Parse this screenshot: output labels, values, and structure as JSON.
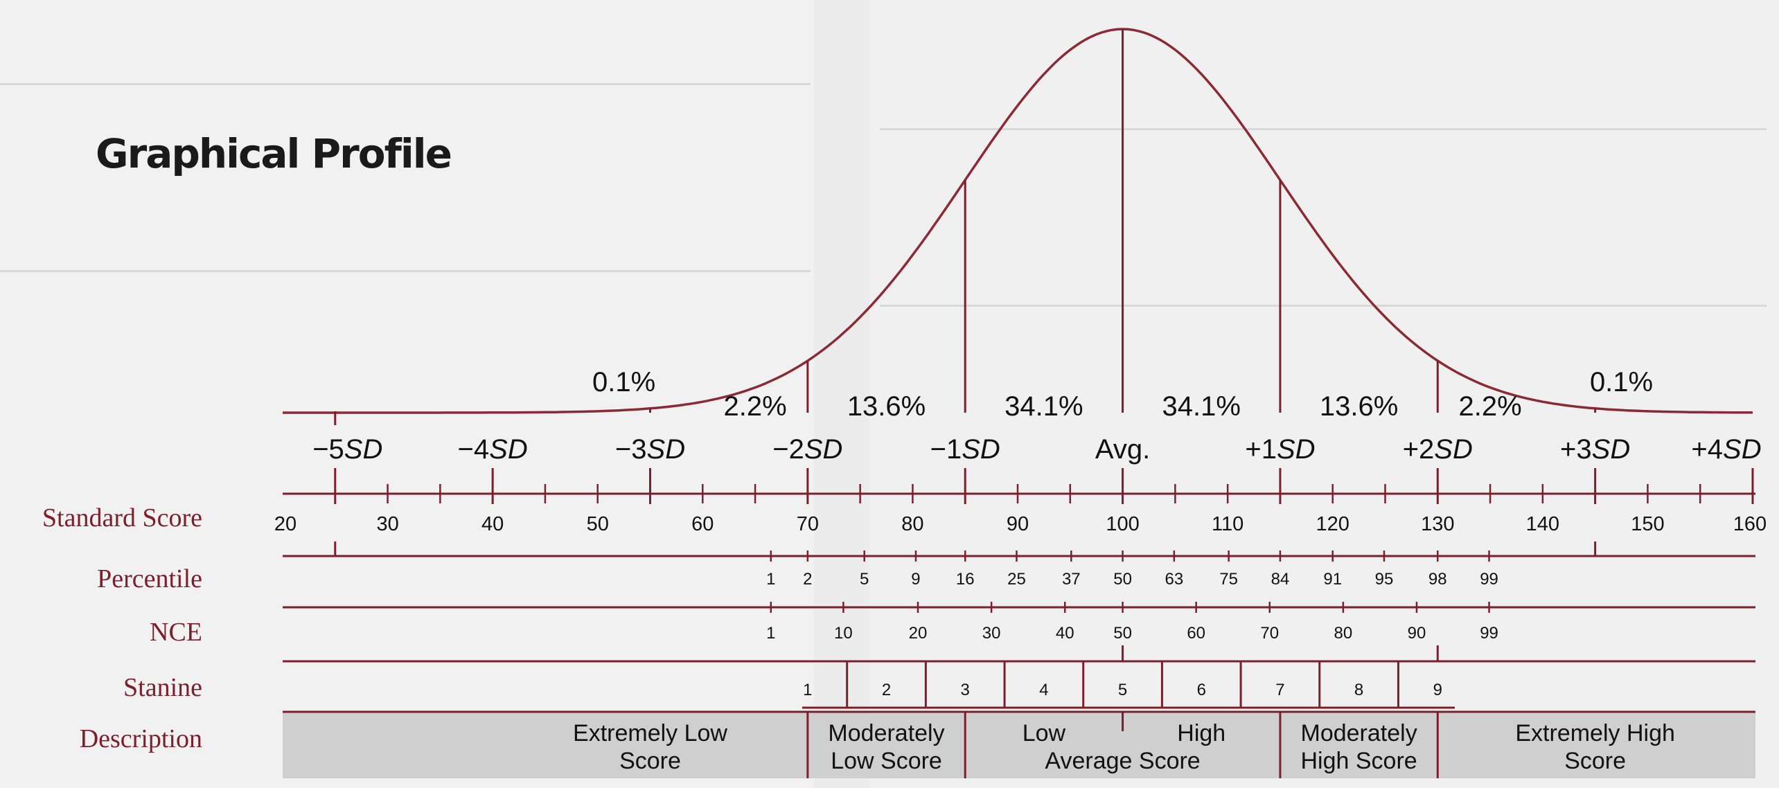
{
  "title": "Graphical Profile",
  "row_labels": {
    "standard_score": "Standard Score",
    "percentile": "Percentile",
    "nce": "NCE",
    "stanine": "Stanine",
    "description": "Description"
  },
  "colors": {
    "accent": "#7a1f2b",
    "curve": "#8b2a35",
    "description_band": "#cfcfcf"
  },
  "diagram": {
    "type": "normal-distribution-profile",
    "area_percentages": [
      {
        "label": "0.1%",
        "x": 52.5
      },
      {
        "label": "2.2%",
        "x": 65
      },
      {
        "label": "13.6%",
        "x": 77.5
      },
      {
        "label": "34.1%",
        "x": 92.5
      },
      {
        "label": "34.1%",
        "x": 107.5
      },
      {
        "label": "13.6%",
        "x": 122.5
      },
      {
        "label": "2.2%",
        "x": 135
      },
      {
        "label": "0.1%",
        "x": 147.5
      }
    ],
    "sd_markers": [
      {
        "value": 25,
        "sign": "−5",
        "unit": "SD"
      },
      {
        "value": 40,
        "sign": "−4",
        "unit": "SD"
      },
      {
        "value": 55,
        "sign": "−3",
        "unit": "SD"
      },
      {
        "value": 70,
        "sign": "−2",
        "unit": "SD"
      },
      {
        "value": 85,
        "sign": "−1",
        "unit": "SD"
      },
      {
        "value": 100,
        "sign": "Avg.",
        "unit": ""
      },
      {
        "value": 115,
        "sign": "+1",
        "unit": "SD"
      },
      {
        "value": 130,
        "sign": "+2",
        "unit": "SD"
      },
      {
        "value": 145,
        "sign": "+3",
        "unit": "SD"
      },
      {
        "value": 160,
        "sign": "+4",
        "unit": "SD"
      }
    ],
    "standard_scores": [
      20,
      30,
      40,
      50,
      60,
      70,
      80,
      90,
      100,
      110,
      120,
      130,
      140,
      150,
      160
    ],
    "percentiles": [
      {
        "label": "1",
        "x": 66.5
      },
      {
        "label": "2",
        "x": 70
      },
      {
        "label": "5",
        "x": 75.4
      },
      {
        "label": "9",
        "x": 80.3
      },
      {
        "label": "16",
        "x": 85
      },
      {
        "label": "25",
        "x": 89.9
      },
      {
        "label": "37",
        "x": 95.1
      },
      {
        "label": "50",
        "x": 100
      },
      {
        "label": "63",
        "x": 104.9
      },
      {
        "label": "75",
        "x": 110.1
      },
      {
        "label": "84",
        "x": 115
      },
      {
        "label": "91",
        "x": 120
      },
      {
        "label": "95",
        "x": 124.9
      },
      {
        "label": "98",
        "x": 130
      },
      {
        "label": "99",
        "x": 134.9
      }
    ],
    "nce": [
      {
        "label": "1",
        "x": 66.5
      },
      {
        "label": "10",
        "x": 73.4
      },
      {
        "label": "20",
        "x": 80.5
      },
      {
        "label": "30",
        "x": 87.5
      },
      {
        "label": "40",
        "x": 94.5
      },
      {
        "label": "50",
        "x": 100
      },
      {
        "label": "60",
        "x": 107
      },
      {
        "label": "70",
        "x": 114
      },
      {
        "label": "80",
        "x": 121
      },
      {
        "label": "90",
        "x": 128
      },
      {
        "label": "99",
        "x": 134.9
      }
    ],
    "stanine": {
      "boundaries": [
        73.75,
        81.25,
        88.75,
        96.25,
        103.75,
        111.25,
        118.75,
        126.25
      ],
      "labels": [
        {
          "label": "1",
          "x": 70
        },
        {
          "label": "2",
          "x": 77.5
        },
        {
          "label": "3",
          "x": 85
        },
        {
          "label": "4",
          "x": 92.5
        },
        {
          "label": "5",
          "x": 100
        },
        {
          "label": "6",
          "x": 107.5
        },
        {
          "label": "7",
          "x": 115
        },
        {
          "label": "8",
          "x": 122.5
        },
        {
          "label": "9",
          "x": 130
        }
      ]
    },
    "descriptions": [
      {
        "lines": [
          "Extremely Low",
          "Score"
        ],
        "x": 55
      },
      {
        "lines": [
          "Moderately",
          "Low Score"
        ],
        "x": 77.5
      },
      {
        "lines": [
          "Low",
          ""
        ],
        "x": 92.5
      },
      {
        "lines": [
          "High",
          ""
        ],
        "x": 107.5
      },
      {
        "lines": [
          "",
          "Average Score"
        ],
        "x": 100
      },
      {
        "lines": [
          "Moderately",
          "High Score"
        ],
        "x": 122.5
      },
      {
        "lines": [
          "Extremely High",
          "Score"
        ],
        "x": 145
      }
    ],
    "description_dividers": [
      70,
      85,
      115,
      130
    ]
  }
}
